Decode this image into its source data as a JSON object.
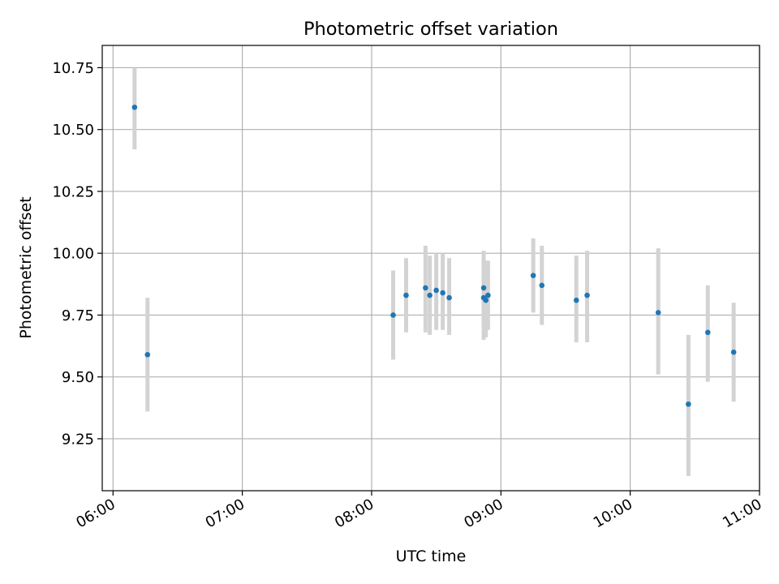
{
  "chart_data": {
    "type": "scatter",
    "title": "Photometric offset variation",
    "xlabel": "UTC time",
    "ylabel": "Photometric offset",
    "x_ticks": [
      "06:00",
      "07:00",
      "08:00",
      "09:00",
      "10:00",
      "11:00"
    ],
    "y_ticks": [
      "9.25",
      "9.50",
      "9.75",
      "10.00",
      "10.25",
      "10.50",
      "10.75"
    ],
    "xlim": [
      "05:55",
      "11:00"
    ],
    "ylim": [
      9.04,
      10.84
    ],
    "grid": true,
    "error_bar_color": "#d3d3d3",
    "point_color": "#1f77b4",
    "series": [
      {
        "points": [
          {
            "x": "06:10",
            "y": 10.59,
            "yerr_low": 10.42,
            "yerr_high": 10.75
          },
          {
            "x": "06:16",
            "y": 9.59,
            "yerr_low": 9.36,
            "yerr_high": 9.82
          },
          {
            "x": "08:10",
            "y": 9.75,
            "yerr_low": 9.57,
            "yerr_high": 9.93
          },
          {
            "x": "08:16",
            "y": 9.83,
            "yerr_low": 9.68,
            "yerr_high": 9.98
          },
          {
            "x": "08:25",
            "y": 9.86,
            "yerr_low": 9.68,
            "yerr_high": 10.03
          },
          {
            "x": "08:27",
            "y": 9.83,
            "yerr_low": 9.67,
            "yerr_high": 9.99
          },
          {
            "x": "08:30",
            "y": 9.85,
            "yerr_low": 9.69,
            "yerr_high": 10.0
          },
          {
            "x": "08:33",
            "y": 9.84,
            "yerr_low": 9.69,
            "yerr_high": 10.0
          },
          {
            "x": "08:36",
            "y": 9.82,
            "yerr_low": 9.67,
            "yerr_high": 9.98
          },
          {
            "x": "08:52",
            "y": 9.86,
            "yerr_low": 9.71,
            "yerr_high": 10.01
          },
          {
            "x": "08:52",
            "y": 9.82,
            "yerr_low": 9.65,
            "yerr_high": 9.98
          },
          {
            "x": "08:53",
            "y": 9.81,
            "yerr_low": 9.66,
            "yerr_high": 9.97
          },
          {
            "x": "08:54",
            "y": 9.83,
            "yerr_low": 9.69,
            "yerr_high": 9.97
          },
          {
            "x": "09:15",
            "y": 9.91,
            "yerr_low": 9.76,
            "yerr_high": 10.06
          },
          {
            "x": "09:19",
            "y": 9.87,
            "yerr_low": 9.71,
            "yerr_high": 10.03
          },
          {
            "x": "09:35",
            "y": 9.81,
            "yerr_low": 9.64,
            "yerr_high": 9.99
          },
          {
            "x": "09:40",
            "y": 9.83,
            "yerr_low": 9.64,
            "yerr_high": 10.01
          },
          {
            "x": "10:13",
            "y": 9.76,
            "yerr_low": 9.51,
            "yerr_high": 10.02
          },
          {
            "x": "10:27",
            "y": 9.39,
            "yerr_low": 9.1,
            "yerr_high": 9.67
          },
          {
            "x": "10:36",
            "y": 9.68,
            "yerr_low": 9.48,
            "yerr_high": 9.87
          },
          {
            "x": "10:48",
            "y": 9.6,
            "yerr_low": 9.4,
            "yerr_high": 9.8
          }
        ]
      }
    ]
  }
}
